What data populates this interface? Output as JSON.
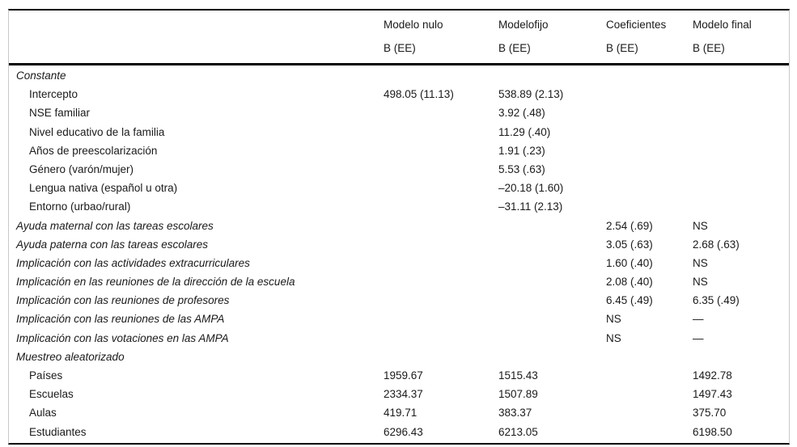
{
  "table": {
    "header": {
      "columns": [
        {
          "label": "Modelo nulo",
          "sub": "B (EE)"
        },
        {
          "label": "Modelofijo",
          "sub": "B (EE)"
        },
        {
          "label": "Coeficientes",
          "sub": "B (EE)"
        },
        {
          "label": "Modelo final",
          "sub": "B (EE)"
        }
      ]
    },
    "rows": [
      {
        "label": "Constante",
        "style": "section",
        "values": [
          "",
          "",
          "",
          ""
        ]
      },
      {
        "label": "Intercepto",
        "style": "item",
        "values": [
          "498.05 (11.13)",
          "538.89 (2.13)",
          "",
          ""
        ]
      },
      {
        "label": "NSE familiar",
        "style": "item",
        "values": [
          "",
          "3.92 (.48)",
          "",
          ""
        ]
      },
      {
        "label": "Nivel educativo de la familia",
        "style": "item",
        "values": [
          "",
          "11.29 (.40)",
          "",
          ""
        ]
      },
      {
        "label": "Años de preescolarización",
        "style": "item",
        "values": [
          "",
          "1.91 (.23)",
          "",
          ""
        ]
      },
      {
        "label": "Género (varón/mujer)",
        "style": "item",
        "values": [
          "",
          "5.53 (.63)",
          "",
          ""
        ]
      },
      {
        "label": "Lengua nativa (español u otra)",
        "style": "item",
        "values": [
          "",
          "–20.18 (1.60)",
          "",
          ""
        ]
      },
      {
        "label": "Entorno (urbao/rural)",
        "style": "item",
        "values": [
          "",
          "–31.11 (2.13)",
          "",
          ""
        ]
      },
      {
        "label": "Ayuda maternal con las tareas escolares",
        "style": "section",
        "values": [
          "",
          "",
          "2.54 (.69)",
          "NS"
        ]
      },
      {
        "label": "Ayuda paterna con las tareas escolares",
        "style": "section",
        "values": [
          "",
          "",
          "3.05 (.63)",
          "2.68 (.63)"
        ]
      },
      {
        "label": "Implicación con las actividades extracurriculares",
        "style": "section",
        "values": [
          "",
          "",
          "1.60 (.40)",
          "NS"
        ]
      },
      {
        "label": "Implicación en las reuniones de la dirección de la escuela",
        "style": "section",
        "values": [
          "",
          "",
          "2.08 (.40)",
          "NS"
        ]
      },
      {
        "label": "Implicación con las reuniones de profesores",
        "style": "section",
        "values": [
          "",
          "",
          "6.45 (.49)",
          "6.35 (.49)"
        ]
      },
      {
        "label": "Implicación con las reuniones de las AMPA",
        "style": "section",
        "values": [
          "",
          "",
          "NS",
          "—"
        ]
      },
      {
        "label": "Implicación con las votaciones en las AMPA",
        "style": "section",
        "values": [
          "",
          "",
          "NS",
          "—"
        ]
      },
      {
        "label": "Muestreo aleatorizado",
        "style": "section",
        "values": [
          "",
          "",
          "",
          ""
        ]
      },
      {
        "label": "Países",
        "style": "item",
        "values": [
          "1959.67",
          "1515.43",
          "",
          "1492.78"
        ]
      },
      {
        "label": "Escuelas",
        "style": "item",
        "values": [
          "2334.37",
          "1507.89",
          "",
          "1497.43"
        ]
      },
      {
        "label": "Aulas",
        "style": "item",
        "values": [
          "419.71",
          "383.37",
          "",
          "375.70"
        ]
      },
      {
        "label": "Estudiantes",
        "style": "item",
        "values": [
          "6296.43",
          "6213.05",
          "",
          "6198.50"
        ]
      }
    ]
  }
}
